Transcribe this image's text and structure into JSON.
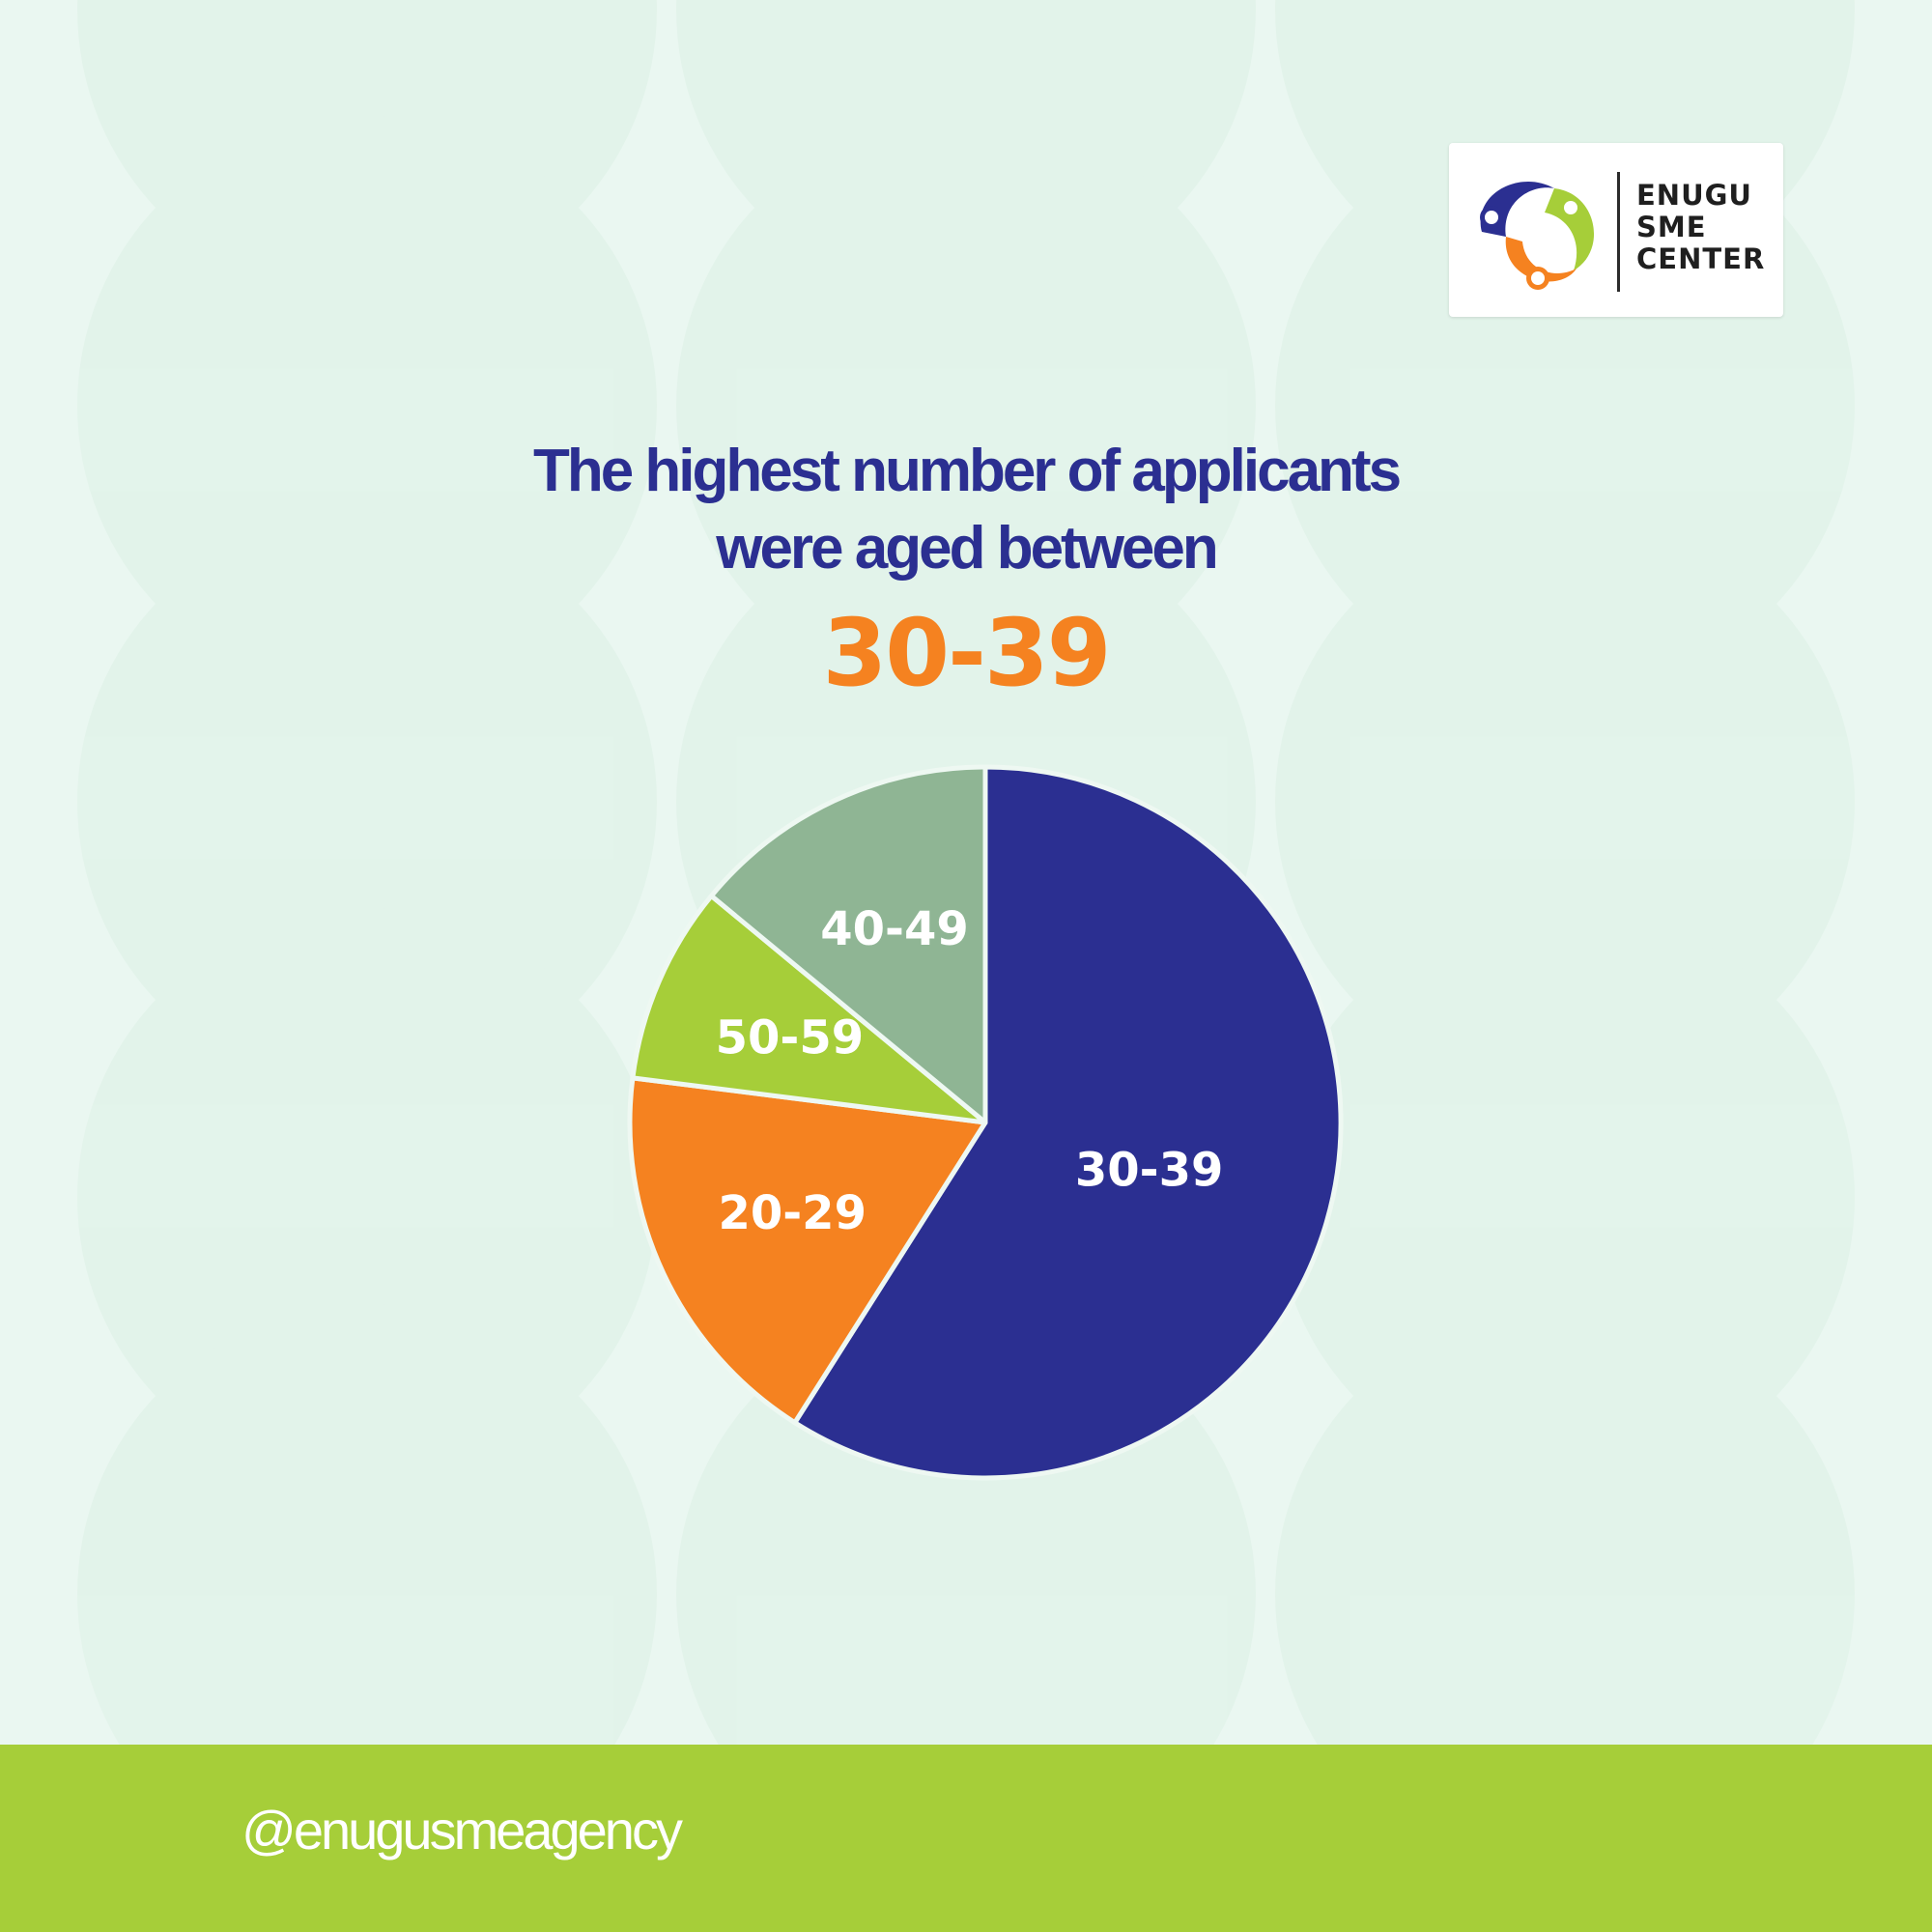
{
  "headline": {
    "line1": "The highest number of applicants",
    "line2": "were aged between",
    "highlight": "30-39"
  },
  "logo": {
    "line1": "ENUGU",
    "line2": "SME",
    "line3": "CENTER"
  },
  "footer": {
    "handle": "@enugusmeagency"
  },
  "colors": {
    "navy": "#2b2f91",
    "orange": "#f58220",
    "lime": "#a6ce39",
    "sage": "#8fb594"
  },
  "chart_data": {
    "type": "pie",
    "title": "",
    "labels": [
      "30-39",
      "20-29",
      "50-59",
      "40-49"
    ],
    "values": [
      59,
      18,
      9,
      14
    ],
    "colors": [
      "#2b2f91",
      "#f58220",
      "#a6ce39",
      "#8fb594"
    ],
    "legend": "none"
  }
}
